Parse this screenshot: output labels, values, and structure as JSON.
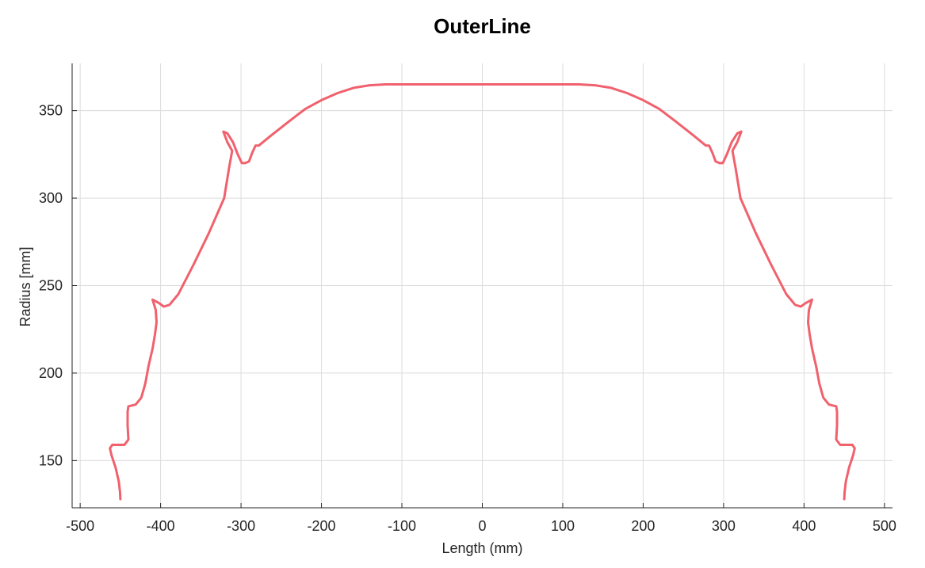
{
  "chart_data": {
    "type": "line",
    "title": "OuterLine",
    "xlabel": "Length (mm)",
    "ylabel": "Radius [mm]",
    "xlim": [
      -510,
      510
    ],
    "ylim": [
      123,
      377
    ],
    "xticks": [
      -500,
      -400,
      -300,
      -200,
      -100,
      0,
      100,
      200,
      300,
      400,
      500
    ],
    "yticks": [
      150,
      200,
      250,
      300,
      350
    ],
    "grid": true,
    "line_color": "#f0616d",
    "series": [
      {
        "x": [
          -450,
          -450.5,
          -452,
          -456,
          -461,
          -463,
          -460,
          -454,
          -445,
          -440,
          -441,
          -441,
          -440,
          -431,
          -424,
          -419,
          -415,
          -410,
          -407,
          -405,
          -406,
          -410,
          -402,
          -396,
          -389,
          -378,
          -359,
          -340,
          -321,
          -315,
          -311,
          -317,
          -322,
          -317,
          -310,
          -304,
          -299,
          -295,
          -290,
          -286,
          -282,
          -278,
          -262,
          -240,
          -220,
          -200,
          -180,
          -160,
          -140,
          -120,
          -100,
          -50,
          0,
          50,
          100,
          120,
          140,
          160,
          180,
          200,
          220,
          240,
          262,
          278,
          282,
          286,
          290,
          295,
          299,
          304,
          310,
          317,
          322,
          317,
          311,
          315,
          321,
          340,
          359,
          378,
          389,
          396,
          402,
          410,
          406,
          405,
          407,
          410,
          415,
          419,
          424,
          431,
          440,
          441,
          441,
          440,
          445,
          454,
          460,
          463,
          461,
          456,
          452,
          450.5,
          450
        ],
        "y": [
          128,
          132,
          138,
          146,
          153,
          157,
          159,
          159,
          159,
          162,
          170,
          178,
          181,
          182,
          186,
          194,
          204,
          214,
          222,
          229,
          236,
          242,
          240,
          238,
          239,
          245,
          262,
          280,
          300,
          317,
          327,
          332,
          338,
          337,
          332,
          325,
          320,
          320,
          321,
          326,
          330,
          330,
          336,
          344,
          351,
          356,
          360,
          363,
          364.5,
          365,
          365,
          365,
          365,
          365,
          365,
          365,
          364.5,
          363,
          360,
          356,
          351,
          344,
          336,
          330,
          330,
          326,
          321,
          320,
          320,
          325,
          332,
          337,
          338,
          332,
          327,
          317,
          300,
          280,
          262,
          245,
          239,
          238,
          240,
          242,
          236,
          229,
          222,
          214,
          204,
          194,
          186,
          182,
          181,
          178,
          170,
          162,
          159,
          159,
          159,
          157,
          153,
          146,
          138,
          132,
          128
        ]
      }
    ]
  }
}
